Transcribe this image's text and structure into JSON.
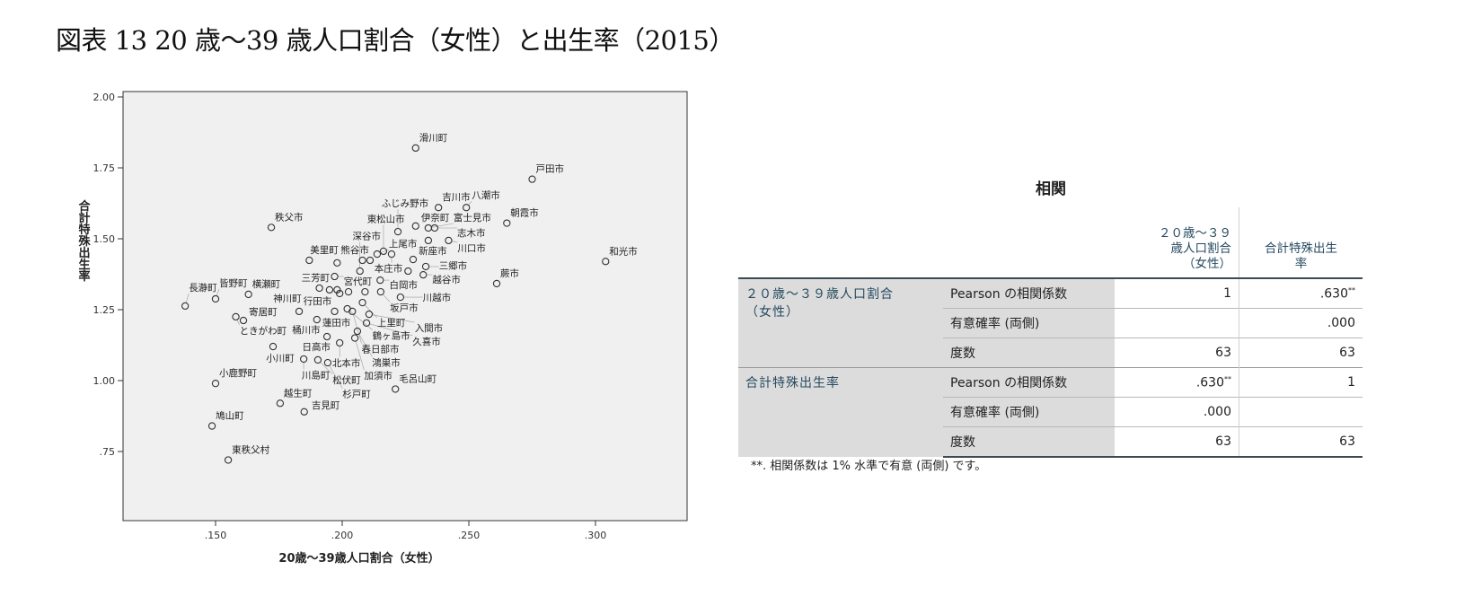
{
  "title": "図表 13 20 歳～39 歳人口割合（女性）と出生率（2015）",
  "chart_data": {
    "type": "scatter",
    "xlabel": "20歳～39歳人口割合（女性）",
    "ylabel": "合計特殊出生率",
    "xlim": [
      0.1135,
      0.336
    ],
    "ylim": [
      0.506,
      2.02
    ],
    "xticks": [
      ".150",
      ".200",
      ".250",
      ".300"
    ],
    "xtick_values": [
      0.15,
      0.2,
      0.25,
      0.3
    ],
    "yticks": [
      "2.00",
      "1.75",
      "1.50",
      "1.25",
      "1.00",
      ".75"
    ],
    "ytick_values": [
      2.0,
      1.75,
      1.5,
      1.25,
      1.0,
      0.75
    ],
    "grid": false,
    "background": "#f0f0f0",
    "marker": "open-circle",
    "points": [
      {
        "label": "滑川町",
        "x": 0.229,
        "y": 1.82
      },
      {
        "label": "戸田市",
        "x": 0.275,
        "y": 1.71
      },
      {
        "label": "吉川市",
        "x": 0.238,
        "y": 1.61
      },
      {
        "label": "八潮市",
        "x": 0.249,
        "y": 1.61
      },
      {
        "label": "朝霞市",
        "x": 0.265,
        "y": 1.555
      },
      {
        "label": "秩父市",
        "x": 0.172,
        "y": 1.54
      },
      {
        "label": "伊奈町",
        "x": 0.229,
        "y": 1.545
      },
      {
        "label": "富士見市",
        "x": 0.234,
        "y": 1.538
      },
      {
        "label": "志木市",
        "x": 0.2365,
        "y": 1.538
      },
      {
        "label": "ふじみ野市",
        "x": 0.222,
        "y": 1.525
      },
      {
        "label": "川口市",
        "x": 0.242,
        "y": 1.494
      },
      {
        "label": "",
        "x": 0.234,
        "y": 1.494
      },
      {
        "label": "和光市",
        "x": 0.304,
        "y": 1.42
      },
      {
        "label": "新座市",
        "x": 0.228,
        "y": 1.427
      },
      {
        "label": "三郷市",
        "x": 0.233,
        "y": 1.402
      },
      {
        "label": "本庄市",
        "x": 0.2195,
        "y": 1.446
      },
      {
        "label": "東松山市",
        "x": 0.2163,
        "y": 1.456
      },
      {
        "label": "上尾市",
        "x": 0.2138,
        "y": 1.446
      },
      {
        "label": "",
        "x": 0.211,
        "y": 1.424
      },
      {
        "label": "",
        "x": 0.208,
        "y": 1.424
      },
      {
        "label": "熊谷市",
        "x": 0.198,
        "y": 1.415
      },
      {
        "label": "美里町",
        "x": 0.187,
        "y": 1.424
      },
      {
        "label": "宮代町",
        "x": 0.197,
        "y": 1.367
      },
      {
        "label": "深谷市",
        "x": 0.207,
        "y": 1.386
      },
      {
        "label": "",
        "x": 0.226,
        "y": 1.386
      },
      {
        "label": "越谷市",
        "x": 0.232,
        "y": 1.373
      },
      {
        "label": "蕨市",
        "x": 0.261,
        "y": 1.342
      },
      {
        "label": "白岡市",
        "x": 0.215,
        "y": 1.354
      },
      {
        "label": "三芳町",
        "x": 0.191,
        "y": 1.326
      },
      {
        "label": "",
        "x": 0.195,
        "y": 1.32
      },
      {
        "label": "行田市",
        "x": 0.198,
        "y": 1.32
      },
      {
        "label": "",
        "x": 0.199,
        "y": 1.307
      },
      {
        "label": "",
        "x": 0.2025,
        "y": 1.313
      },
      {
        "label": "",
        "x": 0.209,
        "y": 1.313
      },
      {
        "label": "坂戸市",
        "x": 0.2152,
        "y": 1.313
      },
      {
        "label": "川越市",
        "x": 0.223,
        "y": 1.294
      },
      {
        "label": "上里町",
        "x": 0.208,
        "y": 1.275
      },
      {
        "label": "蓮田市",
        "x": 0.197,
        "y": 1.244
      },
      {
        "label": "鶴ヶ島市",
        "x": 0.202,
        "y": 1.253
      },
      {
        "label": "春日部市",
        "x": 0.204,
        "y": 1.244
      },
      {
        "label": "入間市",
        "x": 0.2106,
        "y": 1.234
      },
      {
        "label": "神川町",
        "x": 0.183,
        "y": 1.244
      },
      {
        "label": "桶川市",
        "x": 0.19,
        "y": 1.215
      },
      {
        "label": "久喜市",
        "x": 0.2096,
        "y": 1.203
      },
      {
        "label": "鴻巣市",
        "x": 0.206,
        "y": 1.174
      },
      {
        "label": "日高市",
        "x": 0.194,
        "y": 1.155
      },
      {
        "label": "長瀞町",
        "x": 0.138,
        "y": 1.263
      },
      {
        "label": "皆野町",
        "x": 0.15,
        "y": 1.288
      },
      {
        "label": "横瀬町",
        "x": 0.163,
        "y": 1.304
      },
      {
        "label": "寄居町",
        "x": 0.161,
        "y": 1.212
      },
      {
        "label": "ときがわ町",
        "x": 0.158,
        "y": 1.225
      },
      {
        "label": "小川町",
        "x": 0.1727,
        "y": 1.12
      },
      {
        "label": "北本市",
        "x": 0.199,
        "y": 1.133
      },
      {
        "label": "加須市",
        "x": 0.205,
        "y": 1.15
      },
      {
        "label": "川島町",
        "x": 0.1848,
        "y": 1.076
      },
      {
        "label": "松伏町",
        "x": 0.1904,
        "y": 1.073
      },
      {
        "label": "杉戸町",
        "x": 0.1943,
        "y": 1.063
      },
      {
        "label": "小鹿野町",
        "x": 0.15,
        "y": 0.99
      },
      {
        "label": "毛呂山町",
        "x": 0.221,
        "y": 0.97
      },
      {
        "label": "越生町",
        "x": 0.1755,
        "y": 0.92
      },
      {
        "label": "吉見町",
        "x": 0.185,
        "y": 0.89
      },
      {
        "label": "鳩山町",
        "x": 0.1486,
        "y": 0.84
      },
      {
        "label": "東秩父村",
        "x": 0.155,
        "y": 0.72
      }
    ]
  },
  "correlation_table": {
    "title": "相関",
    "col_headers": [
      "２０歳～３９\n歳人口割合\n（女性）",
      "合計特殊出生\n率"
    ],
    "groups": [
      {
        "name": "２０歳～３９歳人口割合\n（女性）",
        "rows": [
          {
            "stat": "Pearson の相関係数",
            "v1": "1",
            "v2": ".630",
            "v2_mark": "**"
          },
          {
            "stat": "有意確率 (両側)",
            "v1": "",
            "v2": ".000"
          },
          {
            "stat": "度数",
            "v1": "63",
            "v2": "63"
          }
        ]
      },
      {
        "name": "合計特殊出生率",
        "rows": [
          {
            "stat": "Pearson の相関係数",
            "v1": ".630",
            "v1_mark": "**",
            "v2": "1"
          },
          {
            "stat": "有意確率 (両側)",
            "v1": ".000",
            "v2": ""
          },
          {
            "stat": "度数",
            "v1": "63",
            "v2": "63"
          }
        ]
      }
    ],
    "footnote": "**. 相関係数は 1% 水準で有意 (両側) です。"
  }
}
